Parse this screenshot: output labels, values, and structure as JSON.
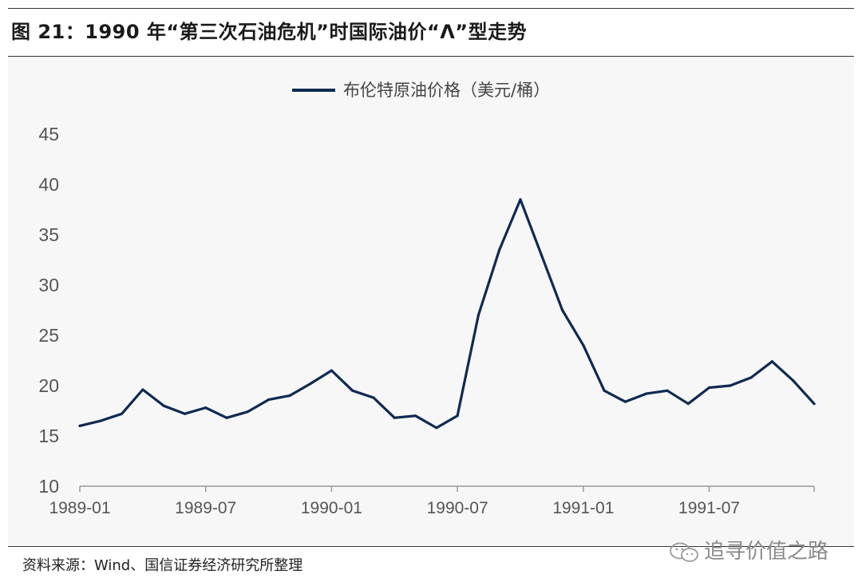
{
  "title": "图 21：1990 年“第三次石油危机”时国际油价“Λ”型走势",
  "source": "资料来源：Wind、国信证券经济研究所整理",
  "watermark": "追寻价值之路",
  "colors": {
    "series": "#0f2a52",
    "axis": "#999999"
  },
  "chart_data": {
    "type": "line",
    "title": "",
    "ylim": [
      10,
      45
    ],
    "yticks": [
      "45",
      "40",
      "35",
      "30",
      "25",
      "20",
      "15",
      "10"
    ],
    "xticks": [
      "1989-01",
      "1989-07",
      "1990-01",
      "1990-07",
      "1991-01",
      "1991-07"
    ],
    "xlim": [
      "1989-01",
      "1991-12"
    ],
    "grid": false,
    "legend": "top-center",
    "series": [
      {
        "name": "布伦特原油价格（美元/桶）",
        "x": [
          "1989-01",
          "1989-02",
          "1989-03",
          "1989-04",
          "1989-05",
          "1989-06",
          "1989-07",
          "1989-08",
          "1989-09",
          "1989-10",
          "1989-11",
          "1989-12",
          "1990-01",
          "1990-02",
          "1990-03",
          "1990-04",
          "1990-05",
          "1990-06",
          "1990-07",
          "1990-08",
          "1990-09",
          "1990-10",
          "1990-11",
          "1990-12",
          "1991-01",
          "1991-02",
          "1991-03",
          "1991-04",
          "1991-05",
          "1991-06",
          "1991-07",
          "1991-08",
          "1991-09",
          "1991-10",
          "1991-11",
          "1991-12"
        ],
        "values": [
          16.0,
          16.5,
          17.2,
          19.6,
          18.0,
          17.2,
          17.8,
          16.8,
          17.4,
          18.6,
          19.0,
          20.2,
          21.5,
          19.5,
          18.8,
          16.8,
          17.0,
          15.8,
          17.0,
          27.0,
          33.5,
          38.5,
          33.0,
          27.5,
          24.0,
          19.5,
          18.4,
          19.2,
          19.5,
          18.2,
          19.8,
          20.0,
          20.8,
          22.4,
          20.5,
          18.2
        ]
      }
    ]
  }
}
